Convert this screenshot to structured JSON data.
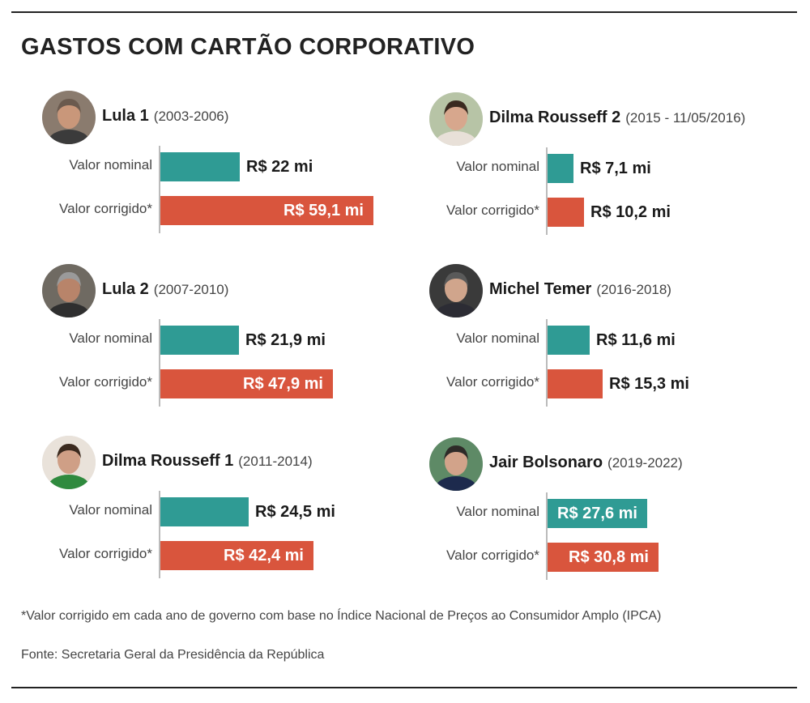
{
  "header": {
    "title": "GASTOS COM CARTÃO CORPORATIVO"
  },
  "row_labels": {
    "nominal": "Valor nominal",
    "corrigido": "Valor corrigido*"
  },
  "colors": {
    "nominal": "#2f9b94",
    "corrigido": "#d9553d"
  },
  "chart_data": {
    "type": "bar",
    "title": "GASTOS COM CARTÃO CORPORATIVO",
    "orientation": "horizontal",
    "unit": "R$ mi",
    "panels": [
      {
        "name": "Lula 1",
        "period": "(2003-2006)",
        "avatar_icon": "portrait-lula-1-icon",
        "series": [
          {
            "name": "Valor nominal",
            "value": 22,
            "label": "R$ 22 mi"
          },
          {
            "name": "Valor corrigido*",
            "value": 59.1,
            "label": "R$ 59,1 mi"
          }
        ]
      },
      {
        "name": "Dilma Rousseff 2",
        "period": "(2015 - 11/05/2016)",
        "avatar_icon": "portrait-dilma-2-icon",
        "series": [
          {
            "name": "Valor nominal",
            "value": 7.1,
            "label": "R$ 7,1 mi"
          },
          {
            "name": "Valor corrigido*",
            "value": 10.2,
            "label": "R$ 10,2 mi"
          }
        ]
      },
      {
        "name": "Lula 2",
        "period": "(2007-2010)",
        "avatar_icon": "portrait-lula-2-icon",
        "series": [
          {
            "name": "Valor nominal",
            "value": 21.9,
            "label": "R$ 21,9 mi"
          },
          {
            "name": "Valor corrigido*",
            "value": 47.9,
            "label": "R$ 47,9 mi"
          }
        ]
      },
      {
        "name": "Michel Temer",
        "period": "(2016-2018)",
        "avatar_icon": "portrait-temer-icon",
        "series": [
          {
            "name": "Valor nominal",
            "value": 11.6,
            "label": "R$ 11,6 mi"
          },
          {
            "name": "Valor corrigido*",
            "value": 15.3,
            "label": "R$ 15,3 mi"
          }
        ]
      },
      {
        "name": "Dilma Rousseff 1",
        "period": "(2011-2014)",
        "avatar_icon": "portrait-dilma-1-icon",
        "series": [
          {
            "name": "Valor nominal",
            "value": 24.5,
            "label": "R$ 24,5 mi"
          },
          {
            "name": "Valor corrigido*",
            "value": 42.4,
            "label": "R$ 42,4 mi"
          }
        ]
      },
      {
        "name": "Jair Bolsonaro",
        "period": "(2019-2022)",
        "avatar_icon": "portrait-bolsonaro-icon",
        "series": [
          {
            "name": "Valor nominal",
            "value": 27.6,
            "label": "R$ 27,6 mi"
          },
          {
            "name": "Valor corrigido*",
            "value": 30.8,
            "label": "R$ 30,8 mi"
          }
        ]
      }
    ]
  },
  "footer": {
    "note": "*Valor corrigido em cada ano de governo com base no Índice Nacional de Preços ao Consumidor Amplo (IPCA)",
    "source": "Fonte: Secretaria Geral da Presidência da República"
  }
}
